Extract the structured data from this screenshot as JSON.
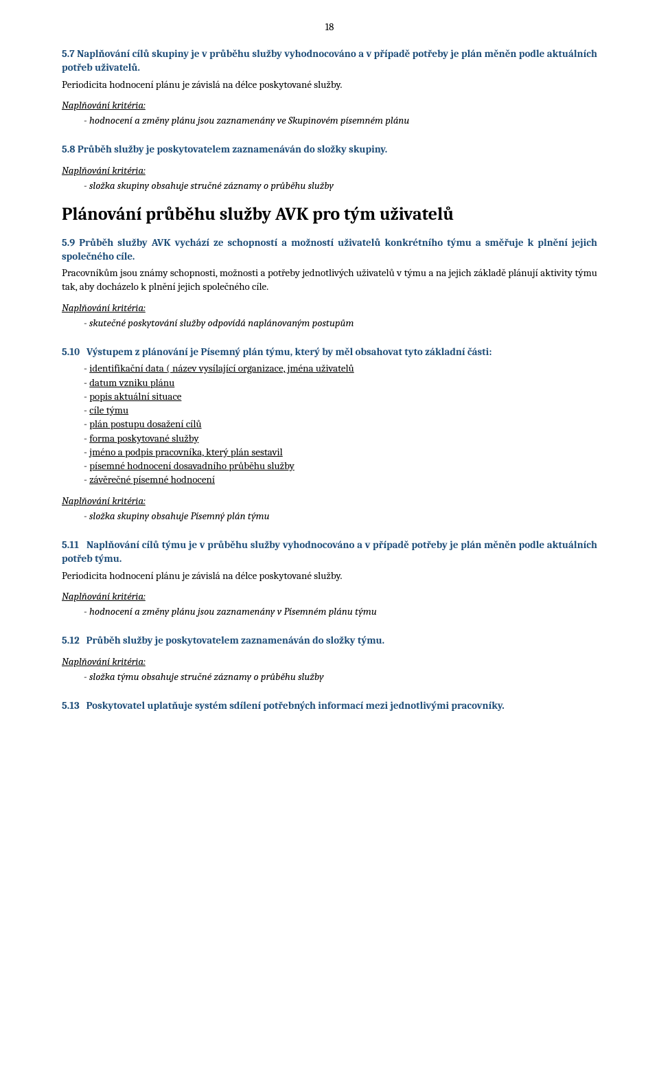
{
  "colors": {
    "text": "#000000",
    "accent": "#1f4e79",
    "background": "#ffffff"
  },
  "typography": {
    "body_fontsize_pt": 11,
    "h2_fontsize_pt": 20,
    "font_family": "Cambria, serif"
  },
  "page_number": "18",
  "criteria_label": "Naplňování kritéria:",
  "sec_5_7": {
    "num": "5.7",
    "title": "Naplňování cílů skupiny je v průběhu služby vyhodnocováno a v případě potřeby je plán měněn podle aktuálních potřeb uživatelů.",
    "body": "Periodicita hodnocení plánu je závislá na délce poskytované služby.",
    "criteria": [
      "hodnocení a změny plánu jsou zaznamenány ve Skupinovém písemném plánu"
    ]
  },
  "sec_5_8": {
    "num": "5.8",
    "title": "Průběh služby je poskytovatelem zaznamenáván do složky skupiny.",
    "criteria": [
      "složka skupiny obsahuje stručné záznamy o průběhu služby"
    ]
  },
  "h2": "Plánování průběhu služby AVK pro tým uživatelů",
  "sec_5_9": {
    "num": "5.9",
    "title": "Průběh služby AVK vychází ze schopností a možností uživatelů konkrétního týmu a směřuje k plnění jejich společného cíle.",
    "body": "Pracovníkům jsou známy schopnosti, možnosti a potřeby jednotlivých uživatelů v týmu a na jejich základě plánují aktivity týmu tak, aby docházelo k plnění jejich společného cíle.",
    "criteria": [
      "skutečné poskytování služby odpovídá naplánovaným postupům"
    ]
  },
  "sec_5_10": {
    "num": "5.10",
    "title": "Výstupem z plánování je Písemný plán týmu, který by měl obsahovat tyto základní části:",
    "items": [
      "identifikační data ( název vysílající organizace, jména uživatelů",
      "datum vzniku plánu",
      "popis aktuální situace",
      "cíle týmu",
      "plán postupu dosažení cílů",
      "forma poskytované služby",
      "jméno a podpis pracovníka, který plán sestavil",
      "písemné hodnocení dosavadního průběhu služby",
      "závěrečné písemné hodnocení"
    ],
    "criteria": [
      "složka skupiny obsahuje Písemný plán týmu"
    ]
  },
  "sec_5_11": {
    "num": "5.11",
    "title": "Naplňování cílů týmu je v průběhu služby vyhodnocováno a v případě potřeby je plán měněn podle aktuálních potřeb týmu.",
    "body": "Periodicita hodnocení plánu je závislá na délce poskytované služby.",
    "criteria": [
      "hodnocení a změny plánu jsou zaznamenány v Písemném plánu týmu"
    ]
  },
  "sec_5_12": {
    "num": "5.12",
    "title": "Průběh služby je poskytovatelem zaznamenáván do složky týmu.",
    "criteria": [
      "složka týmu obsahuje stručné záznamy o průběhu služby"
    ]
  },
  "sec_5_13": {
    "num": "5.13",
    "title": "Poskytovatel uplatňuje systém sdílení potřebných informací mezi jednotlivými pracovníky."
  }
}
